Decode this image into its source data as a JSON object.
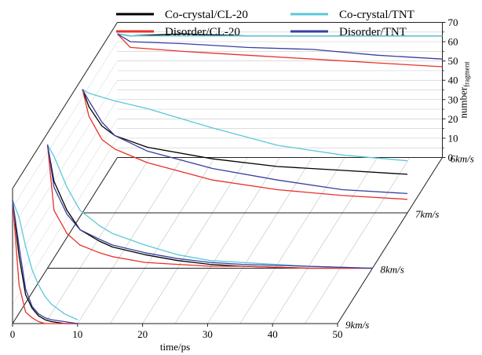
{
  "chart_data": {
    "type": "line",
    "title": "",
    "xlabel": "time/ps",
    "ylabel_main": "number",
    "ylabel_sub": "fragment",
    "xlim": [
      0,
      50
    ],
    "ylim": [
      0,
      70
    ],
    "x_ticks": [
      "0",
      "10",
      "20",
      "30",
      "40",
      "50"
    ],
    "y_ticks": [
      "0",
      "10",
      "20",
      "30",
      "40",
      "50",
      "60",
      "70"
    ],
    "legend": [
      {
        "name": "Co-crystal/CL-20",
        "color": "#000000"
      },
      {
        "name": "Co-crystal/TNT",
        "color": "#5bc8d8"
      },
      {
        "name": "Disorder/CL-20",
        "color": "#e8312a"
      },
      {
        "name": "Disorder/TNT",
        "color": "#3a3fa0"
      }
    ],
    "panels": [
      {
        "label": "6km/s",
        "series": [
          {
            "name": "Co-crystal/CL-20",
            "x": [
              0,
              2,
              10,
              20,
              30,
              40,
              50
            ],
            "y": [
              64,
              63,
              64,
              63,
              63,
              63,
              63
            ]
          },
          {
            "name": "Co-crystal/TNT",
            "x": [
              0,
              2,
              10,
              20,
              30,
              40,
              50
            ],
            "y": [
              64,
              63,
              63,
              63,
              63,
              63,
              63
            ]
          },
          {
            "name": "Disorder/CL-20",
            "x": [
              0,
              2,
              10,
              20,
              30,
              40,
              50
            ],
            "y": [
              64,
              57,
              55,
              53,
              51,
              49,
              47
            ]
          },
          {
            "name": "Disorder/TNT",
            "x": [
              0,
              2,
              10,
              20,
              30,
              40,
              50
            ],
            "y": [
              64,
              60,
              59,
              57,
              56,
              53,
              51
            ]
          }
        ]
      },
      {
        "label": "7km/s",
        "series": [
          {
            "name": "Co-crystal/CL-20",
            "x": [
              0,
              1,
              3,
              5,
              10,
              20,
              30,
              40,
              50
            ],
            "y": [
              64,
              55,
              45,
              40,
              34,
              28,
              24,
              22,
              20
            ]
          },
          {
            "name": "Co-crystal/TNT",
            "x": [
              0,
              1,
              3,
              5,
              10,
              20,
              30,
              40,
              50
            ],
            "y": [
              64,
              62,
              60,
              58,
              54,
              44,
              35,
              30,
              27
            ]
          },
          {
            "name": "Disorder/CL-20",
            "x": [
              0,
              1,
              3,
              5,
              10,
              20,
              30,
              40,
              50
            ],
            "y": [
              64,
              50,
              38,
              33,
              26,
              17,
              12,
              9,
              7
            ]
          },
          {
            "name": "Disorder/TNT",
            "x": [
              0,
              1,
              3,
              5,
              10,
              20,
              30,
              40,
              50
            ],
            "y": [
              64,
              58,
              47,
              40,
              32,
              23,
              17,
              12,
              10
            ]
          }
        ]
      },
      {
        "label": "8km/s",
        "series": [
          {
            "name": "Co-crystal/CL-20",
            "x": [
              0,
              1,
              3,
              5,
              8,
              10,
              15,
              20,
              25,
              30,
              40,
              50
            ],
            "y": [
              64,
              45,
              30,
              20,
              14,
              11,
              7,
              4,
              2,
              1,
              0,
              0
            ]
          },
          {
            "name": "Co-crystal/TNT",
            "x": [
              0,
              1,
              3,
              5,
              8,
              10,
              15,
              20,
              25,
              30,
              40,
              50
            ],
            "y": [
              64,
              58,
              42,
              30,
              22,
              18,
              12,
              7,
              4,
              3,
              1,
              0
            ]
          },
          {
            "name": "Disorder/CL-20",
            "x": [
              0,
              1,
              3,
              5,
              8,
              10,
              15,
              20,
              25,
              30,
              40,
              50
            ],
            "y": [
              64,
              30,
              18,
              12,
              8,
              6,
              3,
              2,
              1,
              1,
              0,
              0
            ]
          },
          {
            "name": "Disorder/TNT",
            "x": [
              0,
              1,
              3,
              5,
              8,
              10,
              15,
              20,
              25,
              30,
              40,
              50
            ],
            "y": [
              64,
              42,
              28,
              20,
              15,
              12,
              8,
              5,
              3,
              2,
              1,
              0
            ]
          }
        ]
      },
      {
        "label": "9km/s",
        "series": [
          {
            "name": "Co-crystal/CL-20",
            "x": [
              0,
              1,
              2,
              3,
              4,
              5,
              6,
              8,
              10
            ],
            "y": [
              64,
              35,
              15,
              8,
              4,
              2,
              1,
              0,
              0
            ]
          },
          {
            "name": "Co-crystal/TNT",
            "x": [
              0,
              1,
              2,
              3,
              4,
              5,
              6,
              8,
              10
            ],
            "y": [
              64,
              55,
              40,
              28,
              20,
              14,
              10,
              5,
              2
            ]
          },
          {
            "name": "Disorder/CL-20",
            "x": [
              0,
              1,
              2,
              3,
              4,
              5,
              6,
              8,
              10
            ],
            "y": [
              64,
              20,
              6,
              3,
              1,
              0,
              0,
              0,
              0
            ]
          },
          {
            "name": "Disorder/TNT",
            "x": [
              0,
              1,
              2,
              3,
              4,
              5,
              6,
              8,
              10
            ],
            "y": [
              64,
              40,
              18,
              9,
              5,
              3,
              2,
              1,
              0
            ]
          }
        ]
      }
    ]
  }
}
